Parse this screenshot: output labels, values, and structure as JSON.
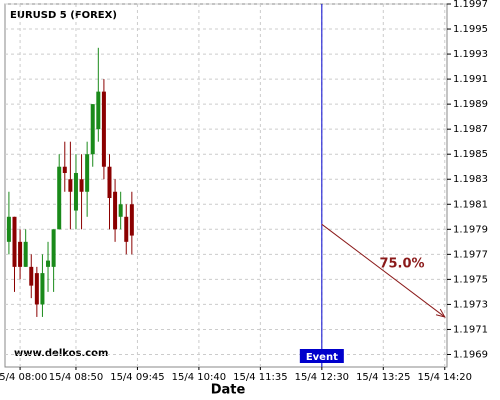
{
  "chart_data": {
    "type": "candlestick",
    "title": "EURUSD 5 (FOREX)",
    "watermark": "www.delkos.com",
    "x_label": "Date",
    "x": [
      -2,
      -1,
      0,
      1,
      2,
      3,
      4,
      5,
      6,
      7,
      8,
      9,
      10,
      11,
      12,
      13,
      14,
      15,
      16,
      17,
      18,
      19,
      20
    ],
    "open": [
      1.1978,
      1.198,
      1.1978,
      1.1976,
      1.1976,
      1.19755,
      1.1973,
      1.1976,
      1.1976,
      1.1979,
      1.1984,
      1.1983,
      1.19805,
      1.1983,
      1.1982,
      1.1985,
      1.1987,
      1.199,
      1.1984,
      1.1982,
      1.198,
      1.198,
      1.1981
    ],
    "high": [
      1.1982,
      1.198,
      1.1979,
      1.1979,
      1.1977,
      1.1976,
      1.1977,
      1.1978,
      1.1979,
      1.1985,
      1.1986,
      1.1986,
      1.1985,
      1.1985,
      1.1986,
      1.1989,
      1.19935,
      1.1991,
      1.1985,
      1.1983,
      1.1982,
      1.1981,
      1.1982
    ],
    "low": [
      1.1977,
      1.1974,
      1.1975,
      1.1976,
      1.19735,
      1.1972,
      1.1972,
      1.1974,
      1.1974,
      1.1979,
      1.1982,
      1.1979,
      1.1979,
      1.1979,
      1.198,
      1.1984,
      1.1986,
      1.1983,
      1.1979,
      1.1978,
      1.1979,
      1.1977,
      1.1977
    ],
    "close": [
      1.198,
      1.1976,
      1.1976,
      1.1978,
      1.19745,
      1.1973,
      1.19755,
      1.19765,
      1.1979,
      1.1984,
      1.19835,
      1.1982,
      1.19835,
      1.1982,
      1.1985,
      1.1989,
      1.199,
      1.1984,
      1.19815,
      1.1979,
      1.1981,
      1.1978,
      1.19785
    ],
    "up_color": "#1a8a1a",
    "down_color": "#8b0000",
    "xlim": [
      -2.7,
      76.4
    ],
    "ylim": [
      1.1968,
      1.1997
    ],
    "xticks": [
      {
        "value": 0,
        "label": "15/4 08:00"
      },
      {
        "value": 10,
        "label": "15/4 08:50"
      },
      {
        "value": 21,
        "label": "15/4 09:45"
      },
      {
        "value": 32,
        "label": "15/4 10:40"
      },
      {
        "value": 43,
        "label": "15/4 11:35"
      },
      {
        "value": 54,
        "label": "15/4 12:30"
      },
      {
        "value": 65,
        "label": "15/4 13:25"
      },
      {
        "value": 76,
        "label": "15/4 14:20"
      }
    ],
    "yticks": [
      1.1969,
      1.1971,
      1.1973,
      1.1975,
      1.1977,
      1.1979,
      1.1981,
      1.1983,
      1.1985,
      1.1987,
      1.1989,
      1.1991,
      1.1993,
      1.1995,
      1.1997
    ],
    "grid": true,
    "event": {
      "x": 54,
      "label": "Event",
      "color": "#0000cc"
    },
    "arrow": {
      "x": [
        54,
        76
      ],
      "y": [
        1.19794,
        1.1972
      ],
      "label": "75.0%",
      "color": "#8b1a1a"
    }
  }
}
